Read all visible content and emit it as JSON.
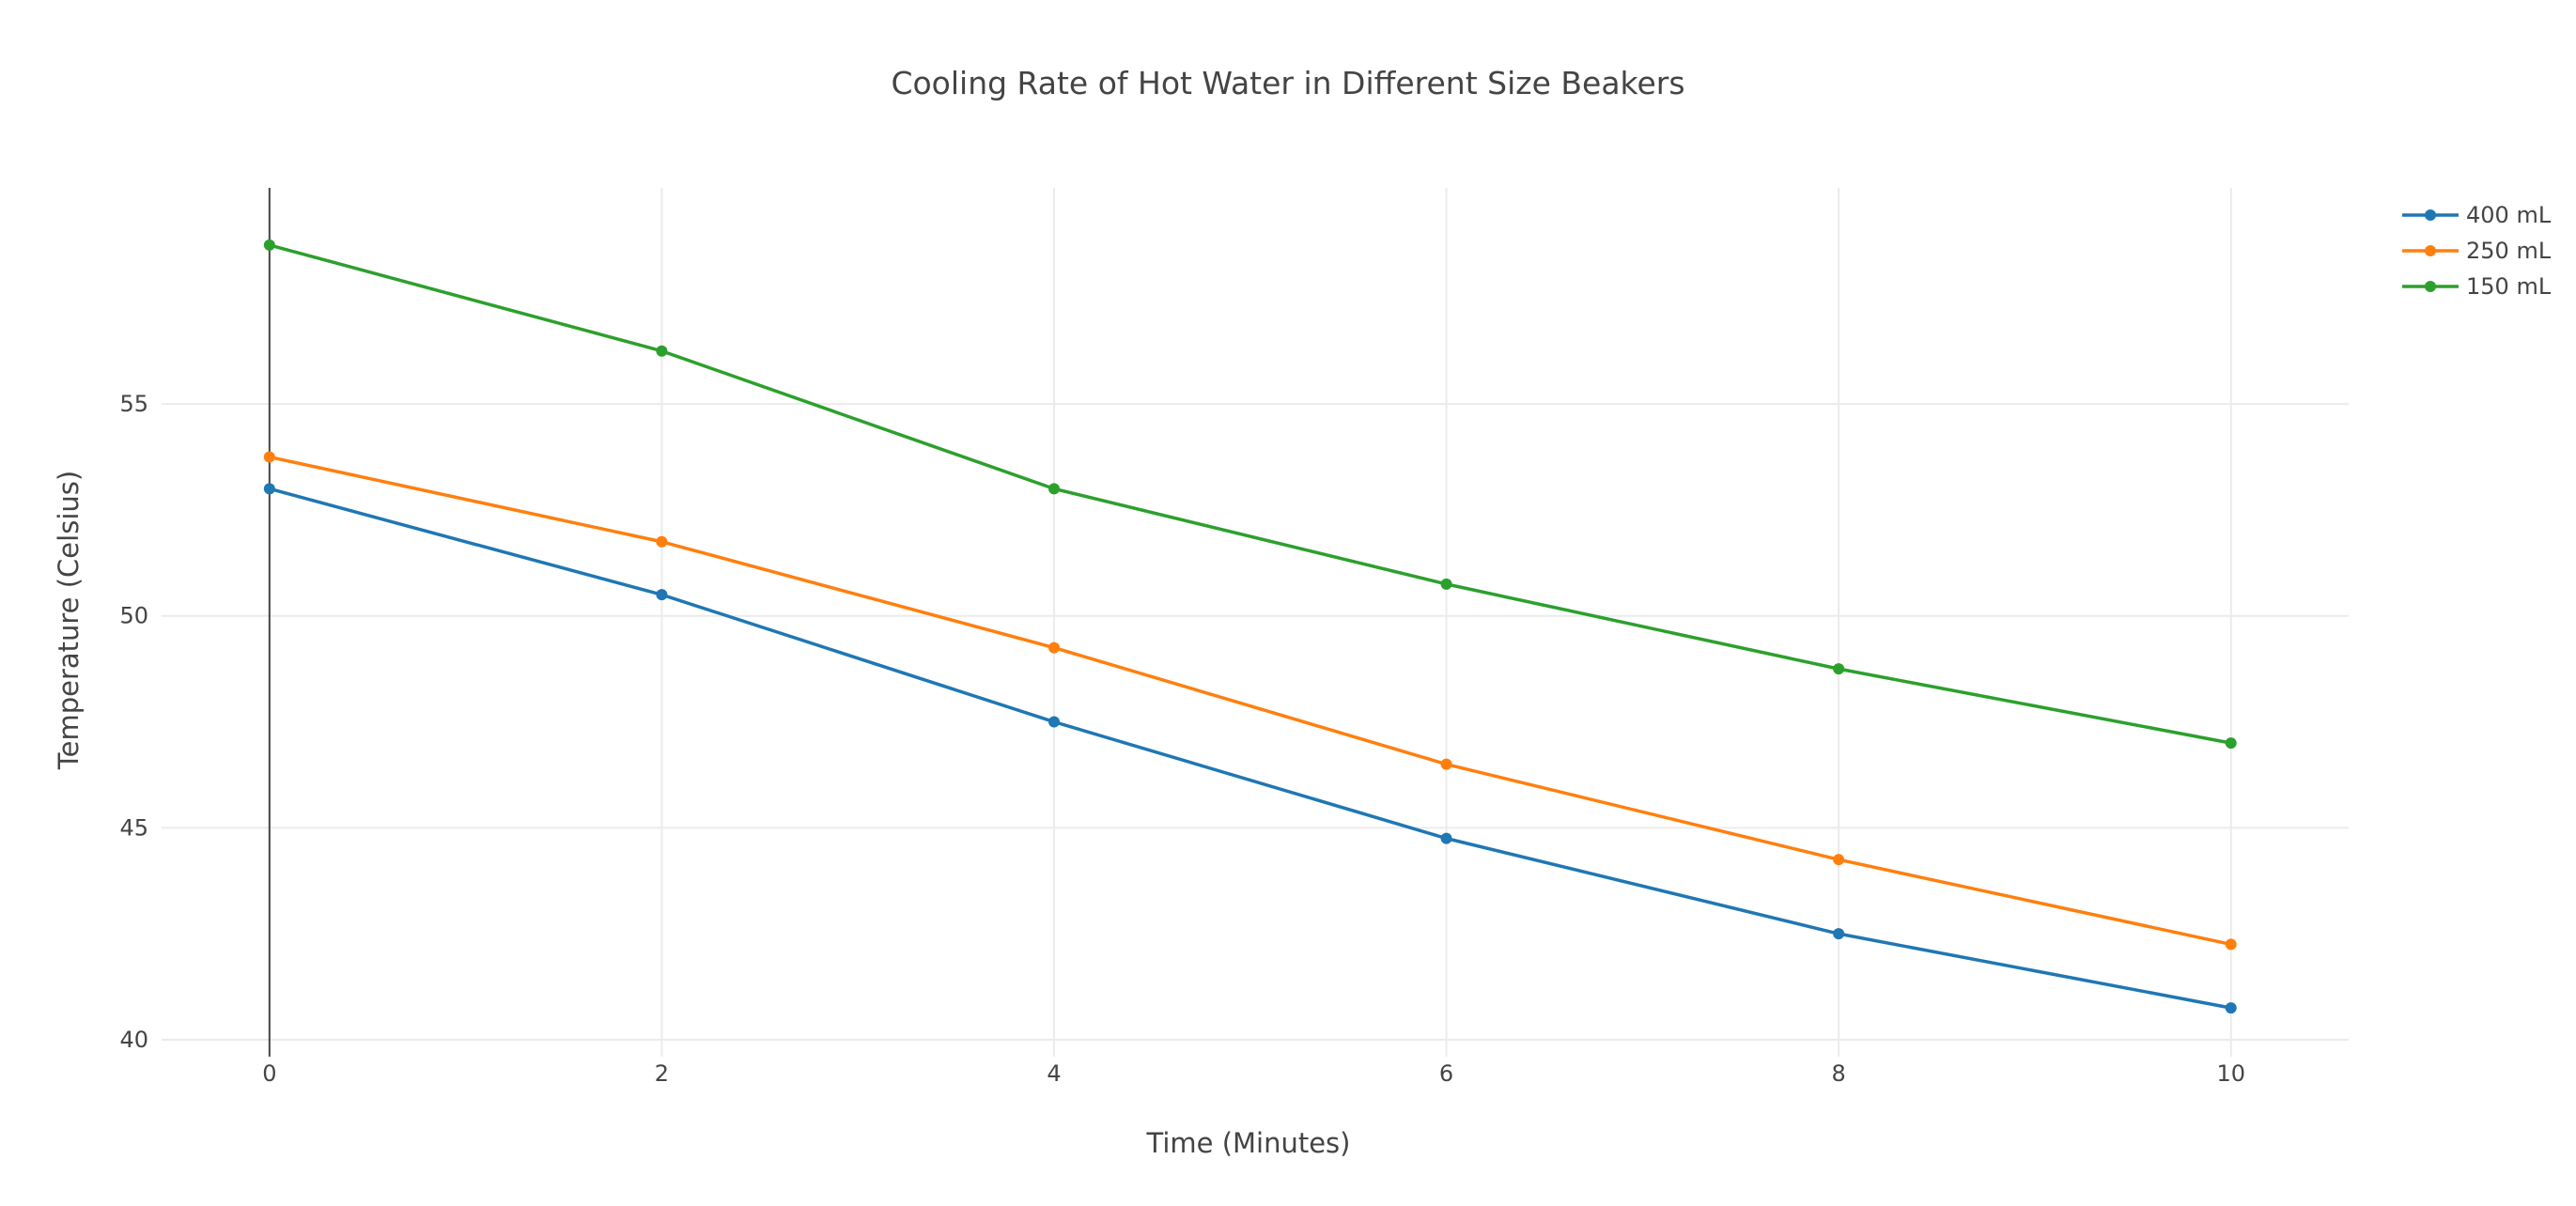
{
  "chart_data": {
    "type": "line",
    "title": "Cooling Rate of Hot Water in Different Size Beakers",
    "xlabel": "Time (Minutes)",
    "ylabel": "Temperature (Celsius)",
    "x": [
      0,
      2,
      4,
      6,
      8,
      10
    ],
    "x_ticks": [
      "0",
      "2",
      "4",
      "6",
      "8",
      "10"
    ],
    "y_ticks": [
      "40",
      "45",
      "50",
      "55"
    ],
    "xlim": [
      -0.55,
      10.6
    ],
    "ylim": [
      39.6,
      60.1
    ],
    "grid": true,
    "legend_position": "top-right",
    "series": [
      {
        "name": "400 mL",
        "color": "#1f77b4",
        "values": [
          53.0,
          50.5,
          47.5,
          44.75,
          42.5,
          40.75
        ]
      },
      {
        "name": "250 mL",
        "color": "#ff7f0e",
        "values": [
          53.75,
          51.75,
          49.25,
          46.5,
          44.25,
          42.25
        ]
      },
      {
        "name": "150 mL",
        "color": "#2ca02c",
        "values": [
          58.75,
          56.25,
          53.0,
          50.75,
          48.75,
          47.0
        ]
      }
    ]
  }
}
